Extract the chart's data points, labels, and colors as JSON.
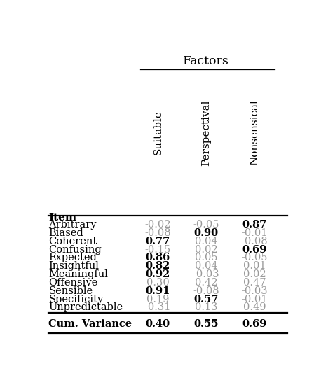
{
  "title": "Factors",
  "col_header_label": "Item",
  "columns": [
    "Suitable",
    "Perspectival",
    "Nonsensical"
  ],
  "rows": [
    {
      "item": "Arbitrary",
      "values": [
        "-0.02",
        "-0.05",
        "0.87"
      ],
      "bold": [
        false,
        false,
        true
      ]
    },
    {
      "item": "Biased",
      "values": [
        "-0.08",
        "0.90",
        "-0.01"
      ],
      "bold": [
        false,
        true,
        false
      ]
    },
    {
      "item": "Coherent",
      "values": [
        "0.77",
        "0.04",
        "-0.08"
      ],
      "bold": [
        true,
        false,
        false
      ]
    },
    {
      "item": "Confusing",
      "values": [
        "-0.15",
        "0.02",
        "0.69"
      ],
      "bold": [
        false,
        false,
        true
      ]
    },
    {
      "item": "Expected",
      "values": [
        "0.86",
        "0.05",
        "-0.05"
      ],
      "bold": [
        true,
        false,
        false
      ]
    },
    {
      "item": "Insightful",
      "values": [
        "0.82",
        "0.04",
        "0.01"
      ],
      "bold": [
        true,
        false,
        false
      ]
    },
    {
      "item": "Meaningful",
      "values": [
        "0.92",
        "-0.03",
        "0.02"
      ],
      "bold": [
        true,
        false,
        false
      ]
    },
    {
      "item": "Offensive",
      "values": [
        "0.30",
        "0.42",
        "0.47"
      ],
      "bold": [
        false,
        false,
        false
      ]
    },
    {
      "item": "Sensible",
      "values": [
        "0.91",
        "-0.08",
        "-0.03"
      ],
      "bold": [
        true,
        false,
        false
      ]
    },
    {
      "item": "Specificity",
      "values": [
        "0.19",
        "0.57",
        "-0.01"
      ],
      "bold": [
        false,
        true,
        false
      ]
    },
    {
      "item": "Unpredictable",
      "values": [
        "-0.31",
        "0.13",
        "0.49"
      ],
      "bold": [
        false,
        false,
        false
      ]
    }
  ],
  "footer": {
    "item": "Cum. Variance",
    "values": [
      "0.40",
      "0.55",
      "0.69"
    ],
    "bold": [
      true,
      true,
      true
    ]
  },
  "bold_color": "#000000",
  "normal_color": "#999999",
  "item_color": "#000000",
  "header_color": "#000000",
  "bg_color": "#ffffff",
  "item_fontsize": 10.5,
  "value_fontsize": 10.5,
  "header_fontsize": 11,
  "title_fontsize": 12.5
}
